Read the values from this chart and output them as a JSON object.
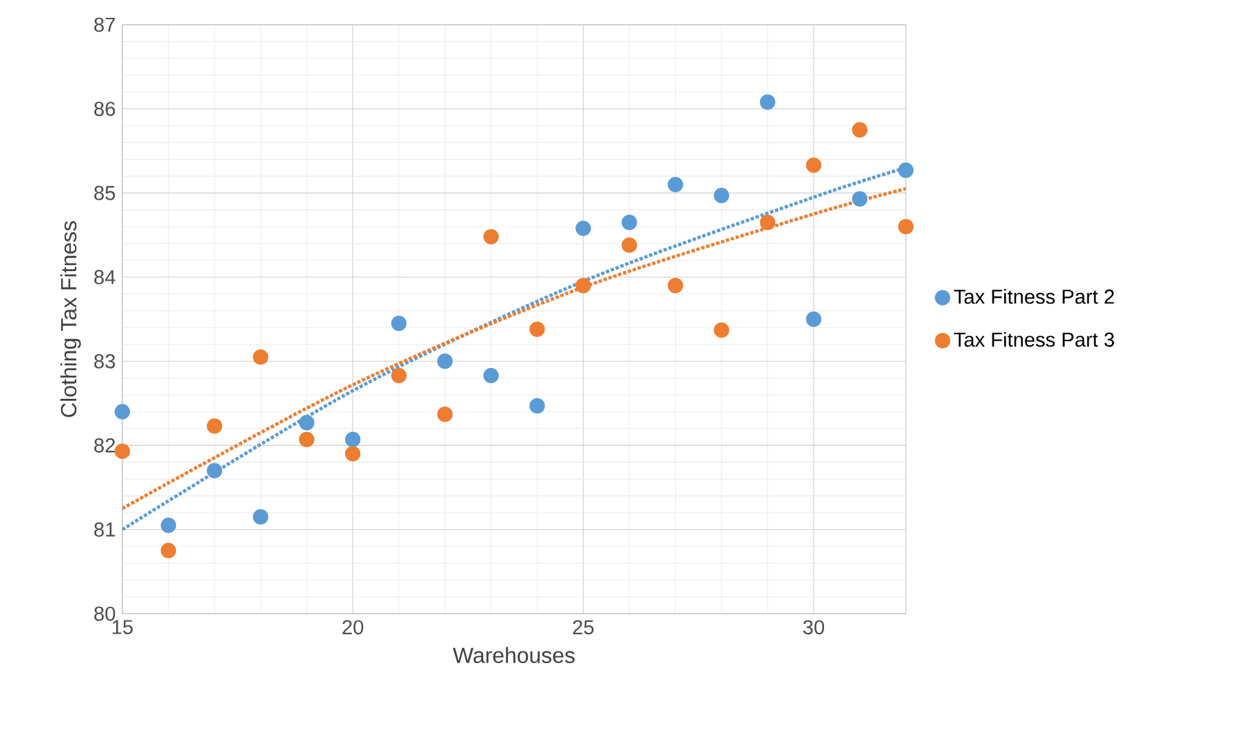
{
  "chart_data": {
    "type": "scatter",
    "xlabel": "Warehouses",
    "ylabel": "Clothing Tax Fitness",
    "x": [
      15,
      16,
      17,
      18,
      19,
      20,
      21,
      22,
      23,
      24,
      25,
      26,
      27,
      28,
      29,
      30,
      31,
      32
    ],
    "series": [
      {
        "name": "Tax Fitness Part 2",
        "color": "#5b9bd5",
        "values": [
          82.4,
          81.05,
          81.7,
          81.15,
          82.27,
          82.07,
          83.45,
          83.0,
          82.83,
          82.47,
          84.58,
          84.65,
          85.1,
          84.97,
          86.08,
          83.5,
          84.93,
          85.27
        ]
      },
      {
        "name": "Tax Fitness Part 3",
        "color": "#ed7d31",
        "values": [
          81.93,
          80.75,
          82.23,
          83.05,
          82.07,
          81.9,
          82.83,
          82.37,
          84.48,
          83.38,
          83.9,
          84.38,
          83.9,
          83.37,
          84.65,
          85.33,
          85.75,
          84.6
        ]
      },
      {
        "type": "line",
        "line_style": "dotted",
        "marker": "none",
        "color": "#5b9bd5",
        "x": [
          15,
          20,
          25,
          30,
          32
        ],
        "values": [
          81.0,
          82.65,
          83.95,
          84.95,
          85.3
        ]
      },
      {
        "type": "line",
        "line_style": "dotted",
        "marker": "none",
        "color": "#ed7d31",
        "x": [
          15,
          20,
          25,
          30,
          32
        ],
        "values": [
          81.25,
          82.72,
          83.88,
          84.75,
          85.05
        ]
      }
    ],
    "marker": "circle",
    "xlim": [
      15,
      32
    ],
    "ylim": [
      80,
      87
    ],
    "xticks": [
      15,
      20,
      25,
      30
    ],
    "yticks": [
      80,
      81,
      82,
      83,
      84,
      85,
      86,
      87
    ],
    "grid": true,
    "legend": "right"
  }
}
